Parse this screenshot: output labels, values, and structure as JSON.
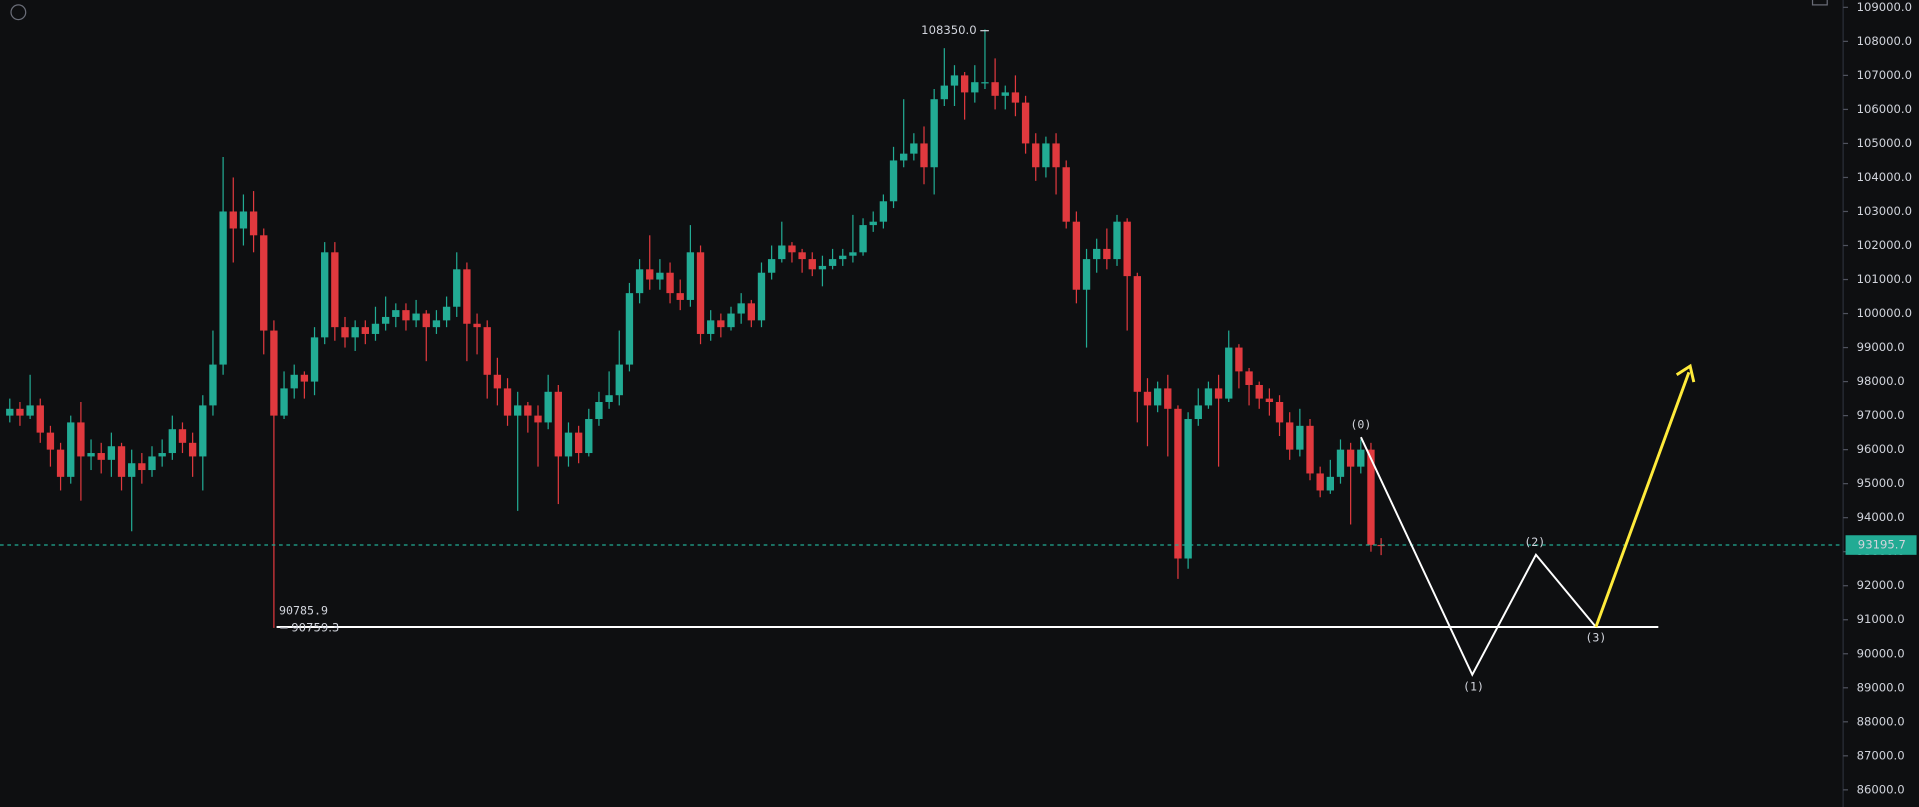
{
  "chart_data": {
    "type": "candlestick",
    "up_color": "#22ab94",
    "down_color": "#e0393e",
    "open": [
      97000,
      97200,
      97000,
      97300,
      96500,
      96000,
      95200,
      96800,
      95800,
      95900,
      95700,
      96100,
      95200,
      95600,
      95400,
      95800,
      95900,
      96600,
      96200,
      95800,
      97300,
      98500,
      103000,
      102500,
      103000,
      102300,
      99500,
      97000,
      97800,
      98200,
      98000,
      99300,
      101800,
      99600,
      99300,
      99600,
      99400,
      99700,
      99900,
      100100,
      99800,
      100000,
      99600,
      99800,
      100200,
      101300,
      99700,
      99600,
      98200,
      97800,
      97000,
      97300,
      97000,
      96800,
      97700,
      95800,
      96500,
      95900,
      96900,
      97400,
      97600,
      98500,
      100600,
      101300,
      101000,
      101200,
      100600,
      100400,
      101800,
      99400,
      99800,
      99600,
      100000,
      100300,
      99800,
      101200,
      101600,
      102000,
      101800,
      101600,
      101300,
      101400,
      101600,
      101700,
      101800,
      102600,
      102700,
      103300,
      104500,
      104700,
      105000,
      104300,
      106300,
      106700,
      107000,
      106500,
      106800,
      106800,
      106400,
      106500,
      106200,
      105000,
      104300,
      105000,
      104300,
      102700,
      100700,
      101600,
      101900,
      101600,
      102700,
      101100,
      97700,
      97300,
      97800,
      97200,
      92800,
      96900,
      97300,
      97800,
      97500,
      99000,
      98300,
      97900,
      97500,
      97400,
      96800,
      96000,
      96700,
      95300,
      94800,
      95200,
      96000,
      95500,
      96000,
      93200
    ],
    "high": [
      97500,
      97400,
      98200,
      97500,
      96700,
      96200,
      97000,
      97400,
      96300,
      96200,
      96500,
      96200,
      96000,
      95900,
      96100,
      96300,
      97000,
      96800,
      96500,
      97600,
      99500,
      104600,
      104000,
      103500,
      103600,
      102500,
      99800,
      98300,
      98500,
      98300,
      99600,
      102100,
      102100,
      99900,
      99800,
      99800,
      100200,
      100500,
      100300,
      100300,
      100400,
      100100,
      100100,
      100500,
      101800,
      101500,
      100000,
      99800,
      98700,
      98100,
      97700,
      97400,
      97300,
      98200,
      97900,
      96800,
      96700,
      97200,
      97700,
      98300,
      99500,
      100900,
      101600,
      102300,
      101600,
      101500,
      101000,
      102600,
      102000,
      100100,
      100000,
      100200,
      100600,
      100400,
      101500,
      102000,
      102700,
      102100,
      101900,
      101800,
      101700,
      101900,
      101900,
      102900,
      102800,
      103000,
      103500,
      104900,
      106300,
      105300,
      105500,
      106600,
      107800,
      107300,
      107100,
      107300,
      108350,
      107500,
      106700,
      107000,
      106400,
      105300,
      105200,
      105300,
      104500,
      103000,
      101900,
      102200,
      102500,
      102900,
      102800,
      101200,
      98100,
      98000,
      98200,
      97300,
      97100,
      97800,
      98000,
      98200,
      99500,
      99100,
      98400,
      98000,
      97800,
      97600,
      97100,
      97200,
      96900,
      95500,
      95700,
      96300,
      96200,
      96300,
      96200,
      93400
    ],
    "low": [
      96800,
      96700,
      96900,
      96200,
      95500,
      94800,
      95000,
      94500,
      95400,
      95300,
      95200,
      94800,
      93600,
      95000,
      95200,
      95500,
      95700,
      95900,
      95200,
      94800,
      97000,
      98200,
      101500,
      102000,
      101800,
      98800,
      90759.3,
      96900,
      97500,
      97500,
      97600,
      99100,
      99200,
      99000,
      98900,
      99100,
      99200,
      99500,
      99600,
      99500,
      99600,
      98600,
      99400,
      99600,
      99900,
      98600,
      98800,
      97500,
      97300,
      96700,
      94200,
      96500,
      95500,
      96600,
      94400,
      95500,
      95600,
      95800,
      96700,
      97200,
      97300,
      98300,
      100300,
      100700,
      100700,
      100300,
      100100,
      100200,
      99100,
      99200,
      99300,
      99500,
      99700,
      99600,
      99600,
      101000,
      101500,
      101500,
      101200,
      101100,
      100800,
      101300,
      101400,
      101500,
      101700,
      102400,
      102500,
      103100,
      104300,
      104500,
      103800,
      103500,
      106100,
      106100,
      105700,
      106200,
      106600,
      106000,
      106000,
      105800,
      104700,
      103900,
      104000,
      103500,
      102500,
      100300,
      99000,
      101200,
      101300,
      101400,
      99500,
      96800,
      96100,
      97100,
      95800,
      92200,
      92500,
      96700,
      97200,
      95500,
      97400,
      97800,
      97300,
      97200,
      97000,
      96400,
      95700,
      95800,
      95100,
      94600,
      94700,
      95000,
      93800,
      95300,
      93000,
      92900
    ],
    "close": [
      97200,
      97000,
      97300,
      96500,
      96000,
      95200,
      96800,
      95800,
      95900,
      95700,
      96100,
      95200,
      95600,
      95400,
      95800,
      95900,
      96600,
      96200,
      95800,
      97300,
      98500,
      103000,
      102500,
      103000,
      102300,
      99500,
      97000,
      97800,
      98200,
      98000,
      99300,
      101800,
      99600,
      99300,
      99600,
      99400,
      99700,
      99900,
      100100,
      99800,
      100000,
      99600,
      99800,
      100200,
      101300,
      99700,
      99600,
      98200,
      97800,
      97000,
      97300,
      97000,
      96800,
      97700,
      95800,
      96500,
      95900,
      96900,
      97400,
      97600,
      98500,
      100600,
      101300,
      101000,
      101200,
      100600,
      100400,
      101800,
      99400,
      99800,
      99600,
      100000,
      100300,
      99800,
      101200,
      101600,
      102000,
      101800,
      101600,
      101300,
      101400,
      101600,
      101700,
      101800,
      102600,
      102700,
      103300,
      104500,
      104700,
      105000,
      104300,
      106300,
      106700,
      107000,
      106500,
      106800,
      106800,
      106400,
      106500,
      106200,
      105000,
      104300,
      105000,
      104300,
      102700,
      100700,
      101600,
      101900,
      101600,
      102700,
      101100,
      97700,
      97300,
      97800,
      97200,
      92800,
      96900,
      97300,
      97800,
      97500,
      99000,
      98300,
      97900,
      97500,
      97400,
      96800,
      96000,
      96700,
      95300,
      94800,
      95200,
      96000,
      95500,
      96000,
      93200,
      93195.7
    ],
    "ylim": [
      86000,
      109000
    ],
    "yticks": [
      {
        "value": 109000,
        "label": "109000.0"
      },
      {
        "value": 108000,
        "label": "108000.0"
      },
      {
        "value": 107000,
        "label": "107000.0"
      },
      {
        "value": 106000,
        "label": "106000.0"
      },
      {
        "value": 105000,
        "label": "105000.0"
      },
      {
        "value": 104000,
        "label": "104000.0"
      },
      {
        "value": 103000,
        "label": "103000.0"
      },
      {
        "value": 102000,
        "label": "102000.0"
      },
      {
        "value": 101000,
        "label": "101000.0"
      },
      {
        "value": 100000,
        "label": "100000.0"
      },
      {
        "value": 99000,
        "label": "99000.0"
      },
      {
        "value": 98000,
        "label": "98000.0"
      },
      {
        "value": 97000,
        "label": "97000.0"
      },
      {
        "value": 96000,
        "label": "96000.0"
      },
      {
        "value": 95000,
        "label": "95000.0"
      },
      {
        "value": 94000,
        "label": "94000.0"
      },
      {
        "value": 93000,
        "label": "93000.0"
      },
      {
        "value": 92000,
        "label": "92000.0"
      },
      {
        "value": 91000,
        "label": "91000.0"
      },
      {
        "value": 90000,
        "label": "90000.0"
      },
      {
        "value": 89000,
        "label": "89000.0"
      },
      {
        "value": 88000,
        "label": "88000.0"
      },
      {
        "value": 87000,
        "label": "87000.0"
      },
      {
        "value": 86000,
        "label": "86000.0"
      }
    ],
    "last_price": 93195.7,
    "high_label": {
      "value": 108350,
      "label": "108350.0"
    },
    "low_label": 90759.3,
    "level": 90785.9,
    "waves": [
      "(0)",
      "(1)",
      "(2)",
      "(3)"
    ]
  }
}
